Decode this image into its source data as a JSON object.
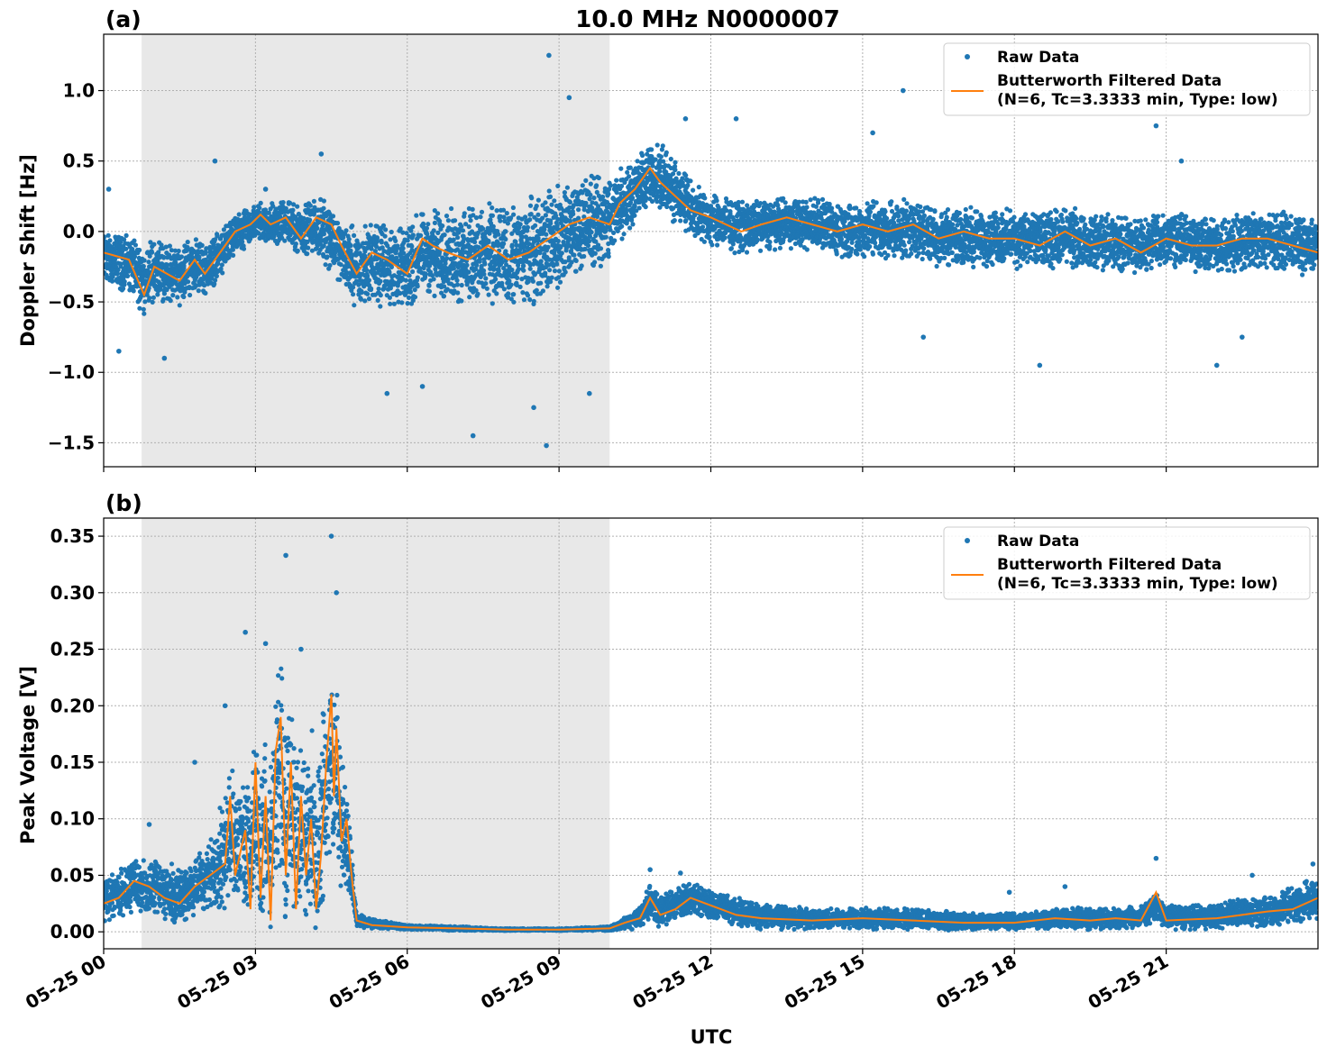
{
  "figure": {
    "title": "10.0 MHz N0000007",
    "xlabel": "UTC"
  },
  "colors": {
    "raw": "#1f77b4",
    "filtered": "#ff7f0e",
    "night_shade": "#e8e8e8",
    "grid": "#b0b0b0"
  },
  "legend": {
    "raw_label": "Raw Data",
    "filtered_label_line1": "Butterworth Filtered Data",
    "filtered_label_line2": "(N=6, Tc=3.3333 min, Type: low)"
  },
  "chart_data": [
    {
      "panel": "(a)",
      "type": "scatter",
      "ylabel": "Doppler Shift [Hz]",
      "xlim_hours": [
        0,
        24
      ],
      "ylim": [
        -1.67,
        1.4
      ],
      "x_unit": "hours UTC on 05-25",
      "xticks_hours": [
        0,
        3,
        6,
        9,
        12,
        15,
        18,
        21
      ],
      "xtick_labels": [
        "05-25 00",
        "05-25 03",
        "05-25 06",
        "05-25 09",
        "05-25 12",
        "05-25 15",
        "05-25 18",
        "05-25 21"
      ],
      "yticks": [
        1.0,
        0.5,
        0.0,
        -0.5,
        -1.0,
        -1.5
      ],
      "ytick_labels": [
        "1.0",
        "0.5",
        "0.0",
        "−0.5",
        "−1.0",
        "−1.5"
      ],
      "shaded_region_hours": [
        0.75,
        10.0
      ],
      "grid": true,
      "legend_position": "upper right",
      "series": [
        {
          "name": "Butterworth Filtered Data",
          "kind": "line",
          "x": [
            0,
            0.5,
            0.8,
            1,
            1.5,
            1.8,
            2,
            2.3,
            2.6,
            2.9,
            3.1,
            3.3,
            3.6,
            3.9,
            4.2,
            4.5,
            4.7,
            5.0,
            5.3,
            5.6,
            6.0,
            6.3,
            6.5,
            6.8,
            7.2,
            7.6,
            8.0,
            8.4,
            8.8,
            9.2,
            9.6,
            10.0,
            10.2,
            10.5,
            10.8,
            11.0,
            11.3,
            11.6,
            12.0,
            12.3,
            12.6,
            13.0,
            13.5,
            14.0,
            14.5,
            15.0,
            15.5,
            16.0,
            16.5,
            17.0,
            17.5,
            18.0,
            18.5,
            19.0,
            19.5,
            20.0,
            20.5,
            21.0,
            21.5,
            22.0,
            22.5,
            23.0,
            23.5,
            24.0
          ],
          "y": [
            -0.15,
            -0.2,
            -0.45,
            -0.25,
            -0.35,
            -0.2,
            -0.3,
            -0.15,
            0.0,
            0.05,
            0.12,
            0.05,
            0.1,
            -0.05,
            0.1,
            0.05,
            -0.1,
            -0.3,
            -0.15,
            -0.2,
            -0.3,
            -0.05,
            -0.1,
            -0.15,
            -0.2,
            -0.1,
            -0.2,
            -0.15,
            -0.05,
            0.05,
            0.1,
            0.05,
            0.2,
            0.3,
            0.45,
            0.35,
            0.25,
            0.15,
            0.1,
            0.05,
            0.0,
            0.05,
            0.1,
            0.05,
            0.0,
            0.05,
            0.0,
            0.05,
            -0.05,
            0.0,
            -0.05,
            -0.05,
            -0.1,
            0.0,
            -0.1,
            -0.05,
            -0.15,
            -0.05,
            -0.1,
            -0.1,
            -0.05,
            -0.05,
            -0.1,
            -0.15
          ]
        },
        {
          "name": "Raw Data",
          "kind": "points",
          "x": [
            0,
            1,
            2,
            3,
            4,
            5,
            6,
            7,
            8,
            9,
            10,
            10.5,
            11,
            12,
            13,
            14,
            15,
            16,
            17,
            18,
            19,
            20,
            21,
            22,
            23,
            24
          ],
          "y": [
            -0.2,
            -0.3,
            -0.25,
            0.05,
            0.05,
            -0.25,
            -0.25,
            -0.15,
            -0.2,
            -0.05,
            0.1,
            0.3,
            0.4,
            0.05,
            0.05,
            0.05,
            0.0,
            0.0,
            -0.05,
            -0.05,
            -0.05,
            -0.1,
            -0.05,
            -0.1,
            -0.05,
            -0.1
          ],
          "spread": [
            0.2,
            0.25,
            0.2,
            0.15,
            0.2,
            0.3,
            0.35,
            0.35,
            0.4,
            0.4,
            0.35,
            0.25,
            0.25,
            0.2,
            0.2,
            0.2,
            0.22,
            0.22,
            0.22,
            0.22,
            0.22,
            0.22,
            0.22,
            0.22,
            0.22,
            0.22
          ],
          "outliers": [
            [
              0.1,
              0.3
            ],
            [
              0.3,
              -0.85
            ],
            [
              1.2,
              -0.9
            ],
            [
              2.2,
              0.5
            ],
            [
              3.2,
              0.3
            ],
            [
              4.3,
              0.55
            ],
            [
              5.6,
              -1.15
            ],
            [
              6.3,
              -1.1
            ],
            [
              7.3,
              -1.45
            ],
            [
              8.5,
              -1.25
            ],
            [
              8.8,
              1.25
            ],
            [
              8.75,
              -1.52
            ],
            [
              9.2,
              0.95
            ],
            [
              9.6,
              -1.15
            ],
            [
              11.5,
              0.8
            ],
            [
              12.5,
              0.8
            ],
            [
              15.2,
              0.7
            ],
            [
              15.8,
              1.0
            ],
            [
              16.2,
              -0.75
            ],
            [
              18.5,
              -0.95
            ],
            [
              20.8,
              0.75
            ],
            [
              21.3,
              0.5
            ],
            [
              22.5,
              -0.75
            ],
            [
              22.0,
              -0.95
            ]
          ]
        }
      ]
    },
    {
      "panel": "(b)",
      "type": "scatter",
      "ylabel": "Peak Voltage [V]",
      "xlim_hours": [
        0,
        24
      ],
      "ylim": [
        -0.015,
        0.366
      ],
      "x_unit": "hours UTC on 05-25",
      "xticks_hours": [
        0,
        3,
        6,
        9,
        12,
        15,
        18,
        21
      ],
      "xtick_labels": [
        "05-25 00",
        "05-25 03",
        "05-25 06",
        "05-25 09",
        "05-25 12",
        "05-25 15",
        "05-25 18",
        "05-25 21"
      ],
      "yticks": [
        0.35,
        0.3,
        0.25,
        0.2,
        0.15,
        0.1,
        0.05,
        0.0
      ],
      "ytick_labels": [
        "0.35",
        "0.30",
        "0.25",
        "0.20",
        "0.15",
        "0.10",
        "0.05",
        "0.00"
      ],
      "shaded_region_hours": [
        0.75,
        10.0
      ],
      "grid": true,
      "legend_position": "upper right",
      "series": [
        {
          "name": "Butterworth Filtered Data",
          "kind": "line",
          "x": [
            0,
            0.3,
            0.6,
            0.9,
            1.2,
            1.5,
            1.8,
            2.1,
            2.4,
            2.5,
            2.6,
            2.8,
            2.9,
            3.0,
            3.1,
            3.2,
            3.3,
            3.4,
            3.5,
            3.6,
            3.7,
            3.8,
            3.9,
            4.0,
            4.1,
            4.2,
            4.3,
            4.4,
            4.5,
            4.55,
            4.6,
            4.7,
            4.8,
            4.9,
            5.0,
            5.3,
            6.0,
            7.0,
            8.0,
            9.0,
            10.0,
            10.3,
            10.6,
            10.8,
            11.0,
            11.3,
            11.6,
            11.9,
            12.2,
            12.5,
            13.0,
            14.0,
            15.0,
            16.0,
            17.0,
            18.0,
            18.8,
            19.5,
            20.0,
            20.5,
            20.8,
            21.0,
            22.0,
            22.5,
            23.0,
            23.5,
            24.0
          ],
          "y": [
            0.025,
            0.03,
            0.045,
            0.04,
            0.03,
            0.025,
            0.04,
            0.05,
            0.06,
            0.12,
            0.05,
            0.09,
            0.02,
            0.15,
            0.03,
            0.12,
            0.01,
            0.16,
            0.19,
            0.05,
            0.15,
            0.02,
            0.12,
            0.05,
            0.1,
            0.02,
            0.07,
            0.15,
            0.21,
            0.12,
            0.18,
            0.08,
            0.1,
            0.05,
            0.01,
            0.006,
            0.004,
            0.003,
            0.002,
            0.002,
            0.003,
            0.008,
            0.012,
            0.03,
            0.015,
            0.02,
            0.03,
            0.025,
            0.02,
            0.015,
            0.012,
            0.01,
            0.012,
            0.01,
            0.008,
            0.008,
            0.012,
            0.01,
            0.012,
            0.01,
            0.035,
            0.01,
            0.012,
            0.015,
            0.018,
            0.02,
            0.03
          ],
          "x_range_mark": true
        },
        {
          "name": "Raw Data",
          "kind": "points",
          "x": [
            0,
            0.5,
            1,
            1.5,
            2,
            2.5,
            3,
            3.5,
            4,
            4.5,
            4.8,
            5.0,
            6,
            7,
            8,
            9,
            10,
            10.5,
            10.8,
            11,
            11.5,
            12,
            13,
            14,
            15,
            16,
            17,
            18,
            19,
            20,
            21,
            22,
            23,
            24
          ],
          "y": [
            0.03,
            0.04,
            0.04,
            0.035,
            0.045,
            0.08,
            0.09,
            0.12,
            0.09,
            0.14,
            0.08,
            0.01,
            0.004,
            0.003,
            0.002,
            0.002,
            0.003,
            0.01,
            0.025,
            0.02,
            0.03,
            0.025,
            0.015,
            0.012,
            0.012,
            0.012,
            0.01,
            0.01,
            0.012,
            0.012,
            0.015,
            0.015,
            0.02,
            0.03
          ],
          "spread": [
            0.02,
            0.025,
            0.025,
            0.03,
            0.03,
            0.06,
            0.07,
            0.1,
            0.08,
            0.1,
            0.05,
            0.006,
            0.002,
            0.002,
            0.001,
            0.001,
            0.002,
            0.008,
            0.015,
            0.015,
            0.015,
            0.015,
            0.012,
            0.01,
            0.01,
            0.01,
            0.008,
            0.008,
            0.01,
            0.01,
            0.012,
            0.012,
            0.015,
            0.02
          ],
          "outliers": [
            [
              0.9,
              0.095
            ],
            [
              1.8,
              0.15
            ],
            [
              2.4,
              0.2
            ],
            [
              2.8,
              0.265
            ],
            [
              3.2,
              0.255
            ],
            [
              3.6,
              0.333
            ],
            [
              3.9,
              0.25
            ],
            [
              4.5,
              0.35
            ],
            [
              4.6,
              0.3
            ],
            [
              10.8,
              0.055
            ],
            [
              11.4,
              0.052
            ],
            [
              17.9,
              0.035
            ],
            [
              19.0,
              0.04
            ],
            [
              20.8,
              0.065
            ],
            [
              22.7,
              0.05
            ],
            [
              23.9,
              0.06
            ]
          ]
        }
      ]
    }
  ]
}
